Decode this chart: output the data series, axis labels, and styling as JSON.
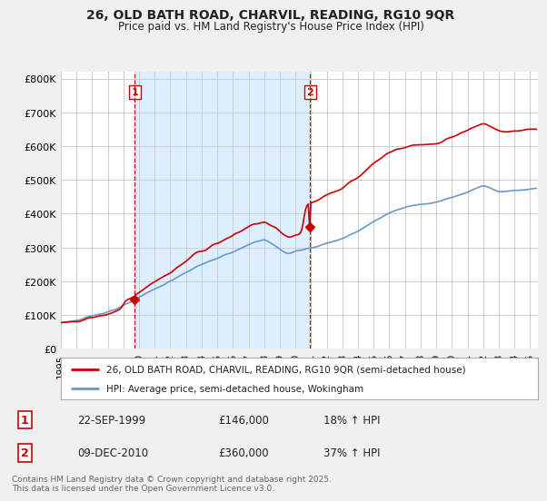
{
  "title_line1": "26, OLD BATH ROAD, CHARVIL, READING, RG10 9QR",
  "title_line2": "Price paid vs. HM Land Registry's House Price Index (HPI)",
  "ylabel_ticks": [
    "£0",
    "£100K",
    "£200K",
    "£300K",
    "£400K",
    "£500K",
    "£600K",
    "£700K",
    "£800K"
  ],
  "ytick_values": [
    0,
    100000,
    200000,
    300000,
    400000,
    500000,
    600000,
    700000,
    800000
  ],
  "ylim": [
    0,
    820000
  ],
  "xlim_start": 1995.0,
  "xlim_end": 2025.5,
  "xtick_years": [
    1995,
    1996,
    1997,
    1998,
    1999,
    2000,
    2001,
    2002,
    2003,
    2004,
    2005,
    2006,
    2007,
    2008,
    2009,
    2010,
    2011,
    2012,
    2013,
    2014,
    2015,
    2016,
    2017,
    2018,
    2019,
    2020,
    2021,
    2022,
    2023,
    2024,
    2025
  ],
  "sale1_x": 1999.73,
  "sale1_y": 146000,
  "sale2_x": 2010.94,
  "sale2_y": 360000,
  "vline_color": "#cc0000",
  "shade_color": "#ddeeff",
  "hpi_color": "#6699cc",
  "price_color": "#cc0000",
  "legend_label_price": "26, OLD BATH ROAD, CHARVIL, READING, RG10 9QR (semi-detached house)",
  "legend_label_hpi": "HPI: Average price, semi-detached house, Wokingham",
  "annotation1_date": "22-SEP-1999",
  "annotation1_price": "£146,000",
  "annotation1_hpi": "18% ↑ HPI",
  "annotation2_date": "09-DEC-2010",
  "annotation2_price": "£360,000",
  "annotation2_hpi": "37% ↑ HPI",
  "footer": "Contains HM Land Registry data © Crown copyright and database right 2025.\nThis data is licensed under the Open Government Licence v3.0.",
  "background_color": "#f0f0f0",
  "plot_bg_color": "#ffffff"
}
